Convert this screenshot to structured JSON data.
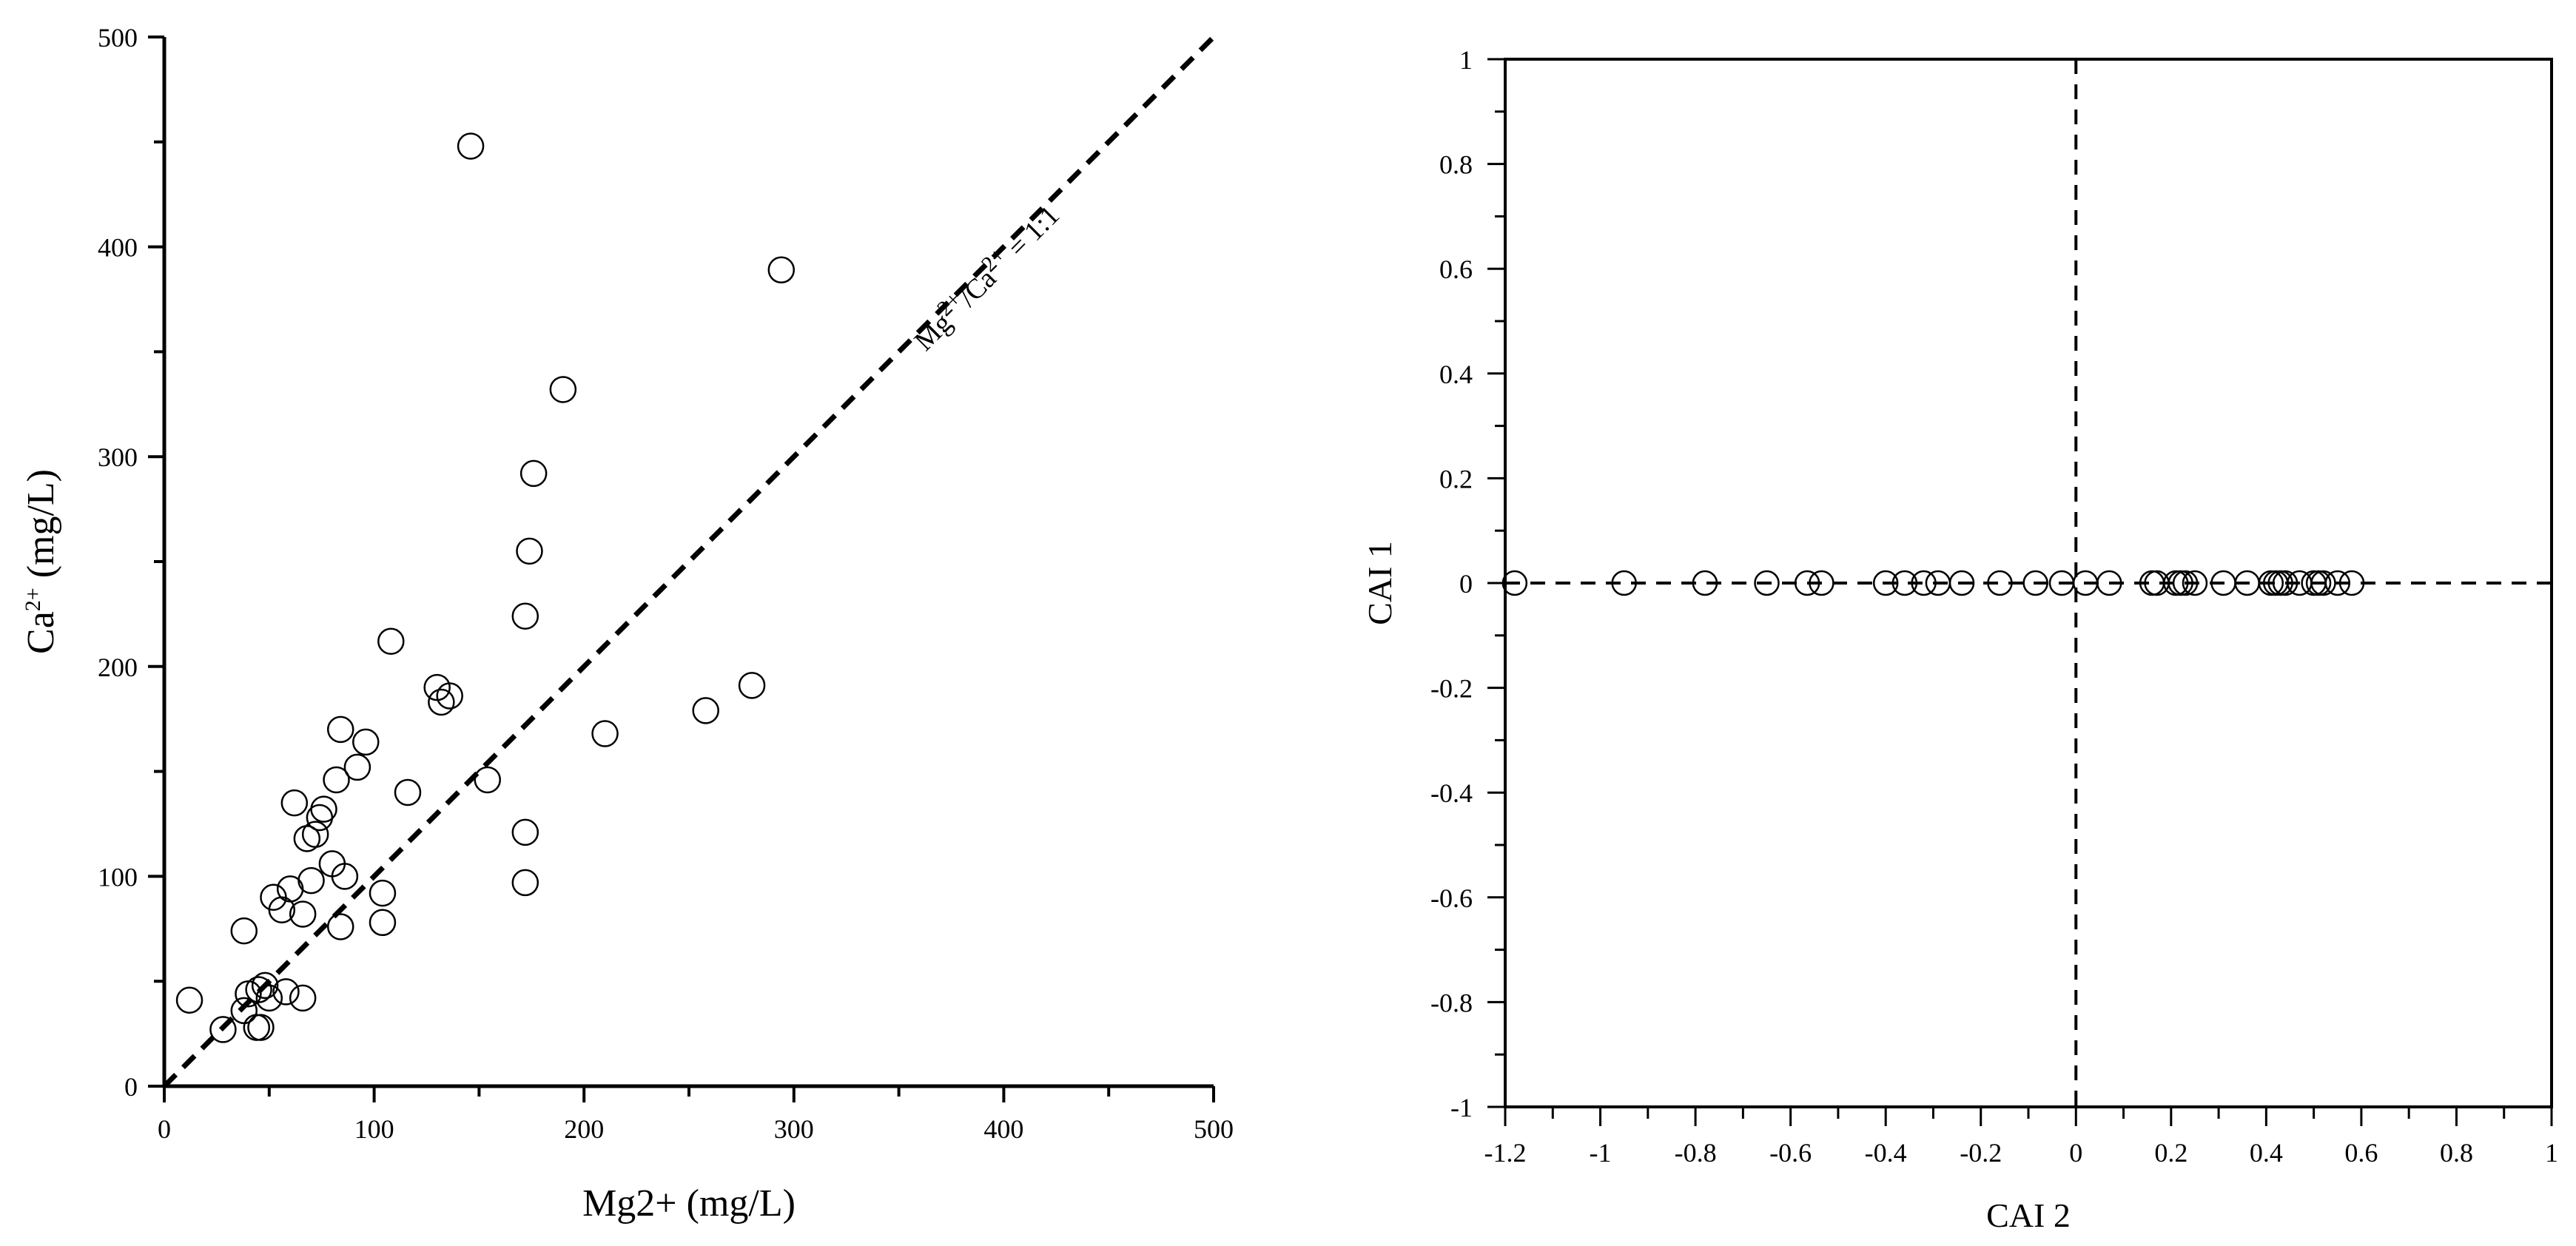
{
  "chart_data": [
    {
      "type": "scatter",
      "xlabel_main": "Mg2+",
      "xlabel_unit": " (mg/L)",
      "ylabel_main": "Ca",
      "ylabel_sup": "2+",
      "ylabel_unit": " (mg/L)",
      "xlim": [
        0,
        500
      ],
      "ylim": [
        0,
        500
      ],
      "x_ticks": [
        "0",
        "100",
        "200",
        "300",
        "400",
        "500"
      ],
      "y_ticks": [
        "0",
        "100",
        "200",
        "300",
        "400",
        "500"
      ],
      "reference_line": {
        "x": [
          0,
          500
        ],
        "y": [
          0,
          500
        ],
        "label_a": "Mg",
        "label_a_sup": "2+",
        "label_b": "/Ca",
        "label_b_sup": "2+",
        "label_c": " = 1:1"
      },
      "series": [
        {
          "x": [
            12,
            28,
            38,
            40,
            45,
            48,
            46,
            50,
            58,
            66,
            44,
            38,
            52,
            56,
            60,
            62,
            66,
            70,
            68,
            72,
            76,
            74,
            80,
            82,
            84,
            86,
            92,
            96,
            84,
            104,
            104,
            108,
            116,
            130,
            132,
            136,
            146,
            154,
            172,
            172,
            174,
            176,
            172,
            190,
            210,
            258,
            280,
            294
          ],
          "y": [
            41,
            27,
            74,
            44,
            46,
            48,
            28,
            42,
            45,
            42,
            28,
            36,
            90,
            84,
            94,
            135,
            82,
            98,
            118,
            120,
            132,
            128,
            106,
            146,
            170,
            100,
            152,
            164,
            76,
            92,
            78,
            212,
            140,
            190,
            183,
            186,
            448,
            146,
            97,
            121,
            255,
            292,
            224,
            332,
            168,
            179,
            191,
            389
          ]
        }
      ]
    },
    {
      "type": "scatter",
      "xlabel": "CAI 2",
      "ylabel": "CAI 1",
      "xlim": [
        -1.2,
        1
      ],
      "ylim": [
        -1,
        1
      ],
      "x_ticks": [
        "-1.2",
        "-1",
        "-0.8",
        "-0.6",
        "-0.4",
        "-0.2",
        "0",
        "0.2",
        "0.4",
        "0.6",
        "0.8",
        "1"
      ],
      "y_ticks": [
        "-1",
        "-0.8",
        "-0.6",
        "-0.4",
        "-0.2",
        "0",
        "0.2",
        "0.4",
        "0.6",
        "0.8",
        "1"
      ],
      "series": [
        {
          "x": [
            -1.18,
            -0.95,
            -0.78,
            -0.65,
            -0.565,
            -0.535,
            -0.4,
            -0.36,
            -0.32,
            -0.29,
            -0.24,
            -0.16,
            -0.085,
            -0.03,
            0.02,
            0.07,
            0.16,
            0.17,
            0.21,
            0.22,
            0.23,
            0.25,
            0.31,
            0.36,
            0.41,
            0.42,
            0.43,
            0.44,
            0.47,
            0.5,
            0.51,
            0.52,
            0.55,
            0.58
          ],
          "y": [
            0,
            0,
            0,
            0,
            0,
            0,
            0,
            0,
            0,
            0,
            0,
            0,
            0,
            0,
            0,
            0,
            0,
            0,
            0,
            0,
            0,
            0,
            0,
            0,
            0,
            0,
            0,
            0,
            0,
            0,
            0,
            0,
            0,
            0
          ]
        }
      ]
    }
  ]
}
